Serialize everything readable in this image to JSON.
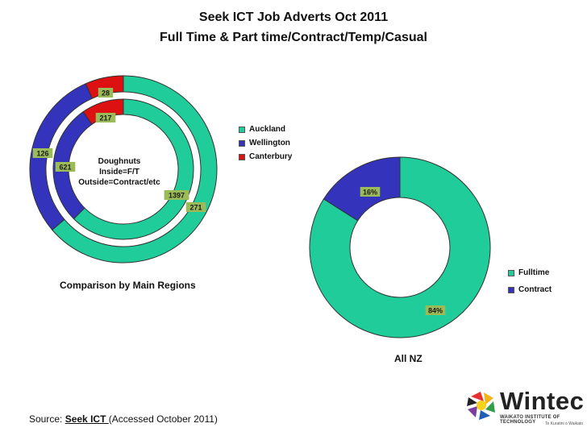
{
  "title_line1": "Seek ICT Job Adverts Oct 2011",
  "title_line2": "Full Time & Part time/Contract/Temp/Casual",
  "center_note": [
    "Doughnuts",
    "Inside=F/T",
    "Outside=Contract/etc"
  ],
  "region_caption": "Comparison by Main Regions",
  "nz_caption": "All NZ",
  "source": {
    "prefix": "Source: ",
    "link": "Seek ICT ",
    "suffix": "(Accessed October 2011)"
  },
  "logo": {
    "name": "Wintec",
    "subtitle": "WAIKATO INSTITUTE OF TECHNOLOGY",
    "tagline": "Te Kuratini o Waikato"
  },
  "colors": {
    "auckland": "#1fcc9a",
    "wellington": "#3333bb",
    "canterbury": "#dd1111",
    "fulltime": "#1fcc9a",
    "contract": "#3333bb",
    "label_bg": "#9bbb59"
  },
  "chart_data": [
    {
      "type": "doughnut",
      "legend_position": "right",
      "categories": [
        "Auckland",
        "Wellington",
        "Canterbury"
      ],
      "series": [
        {
          "name": "Inside=F/T",
          "values": [
            1397,
            621,
            217
          ]
        },
        {
          "name": "Outside=Contract/etc",
          "values": [
            271,
            126,
            28
          ]
        }
      ]
    },
    {
      "type": "doughnut",
      "legend_position": "right",
      "categories": [
        "Fulltime",
        "Contract"
      ],
      "values": [
        84,
        16
      ],
      "data_labels": [
        "84%",
        "16%"
      ]
    }
  ]
}
